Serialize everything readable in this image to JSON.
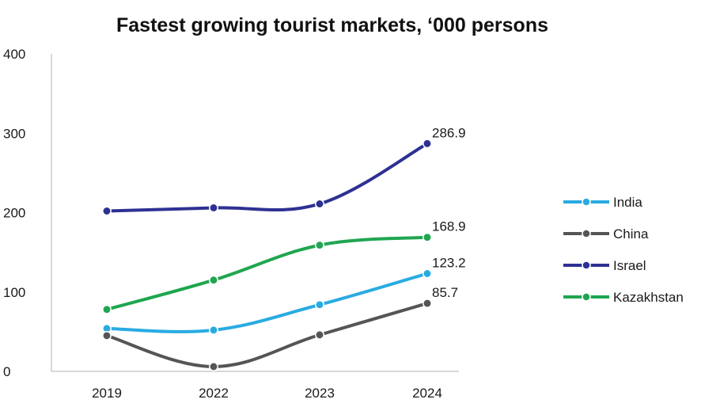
{
  "chart_data": {
    "type": "line",
    "title": "Fastest growing  tourist markets, ‘000 persons",
    "categories": [
      "2019",
      "2022",
      "2023",
      "2024"
    ],
    "ylim": [
      0,
      400
    ],
    "yticks": [
      "0",
      "100",
      "200",
      "300",
      "400"
    ],
    "grid": false,
    "legend_position": "right",
    "series": [
      {
        "name": "India",
        "color": "#29ABE2",
        "values": [
          54,
          52,
          84,
          123.2
        ],
        "end_label": "123.2"
      },
      {
        "name": "China",
        "color": "#555555",
        "values": [
          45,
          6,
          46,
          85.7
        ],
        "end_label": "85.7"
      },
      {
        "name": "Israel",
        "color": "#2E3192",
        "values": [
          202,
          206,
          211,
          286.9
        ],
        "end_label": "286.9"
      },
      {
        "name": "Kazakhstan",
        "color": "#1FA650",
        "values": [
          78,
          115,
          159,
          168.9
        ],
        "end_label": "168.9"
      }
    ]
  }
}
